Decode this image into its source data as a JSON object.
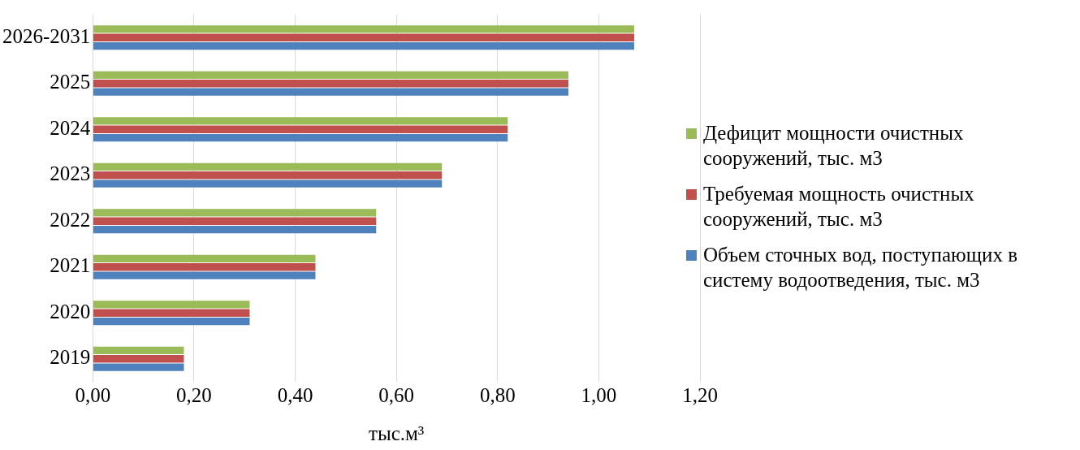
{
  "chart_data": {
    "type": "bar",
    "orientation": "horizontal",
    "xlabel": "тыс.м³",
    "categories": [
      "2026-2031",
      "2025",
      "2024",
      "2023",
      "2022",
      "2021",
      "2020",
      "2019"
    ],
    "series": [
      {
        "name": "Дефицит мощности очистных сооружений, тыс. м3",
        "color": "#9bbb59",
        "values": [
          1.07,
          0.94,
          0.82,
          0.69,
          0.56,
          0.44,
          0.31,
          0.18
        ]
      },
      {
        "name": "Требуемая мощность очистных сооружений, тыс. м3",
        "color": "#c0504d",
        "values": [
          1.07,
          0.94,
          0.82,
          0.69,
          0.56,
          0.44,
          0.31,
          0.18
        ]
      },
      {
        "name": "Объем сточных вод, поступающих в систему водоотведения, тыс. м3",
        "color": "#4f81bd",
        "values": [
          1.07,
          0.94,
          0.82,
          0.69,
          0.56,
          0.44,
          0.31,
          0.18
        ]
      }
    ],
    "xlim": [
      0,
      1.2
    ],
    "xticks": [
      {
        "value": 0,
        "label": "0,00"
      },
      {
        "value": 0.2,
        "label": "0,20"
      },
      {
        "value": 0.4,
        "label": "0,40"
      },
      {
        "value": 0.6,
        "label": "0,60"
      },
      {
        "value": 0.8,
        "label": "0,80"
      },
      {
        "value": 1,
        "label": "1,00"
      },
      {
        "value": 1.2,
        "label": "1,20"
      }
    ],
    "grid": "x",
    "legend": "right"
  }
}
